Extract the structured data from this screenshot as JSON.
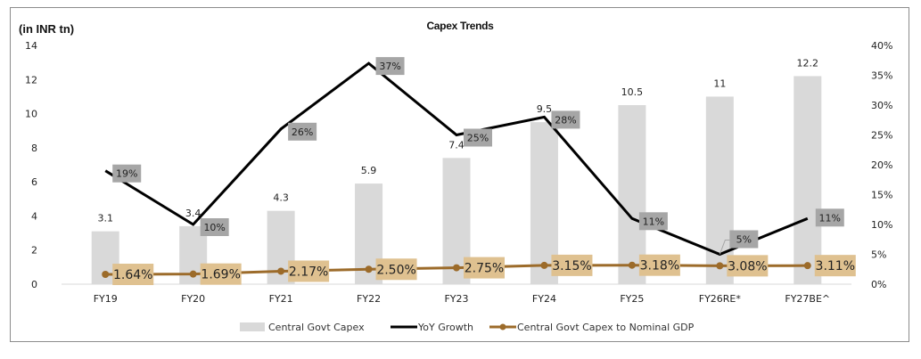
{
  "chart_data": {
    "type": "bar",
    "title": "Capex Trends",
    "ylabel": "(in INR tn)",
    "ylabel_right": "",
    "categories": [
      "FY19",
      "FY20",
      "FY21",
      "FY22",
      "FY23",
      "FY24",
      "FY25",
      "FY26RE*",
      "FY27BE^"
    ],
    "ylim": [
      0,
      14
    ],
    "yticks": [
      0,
      2,
      4,
      6,
      8,
      10,
      12,
      14
    ],
    "ylim_right": [
      0,
      40
    ],
    "yticks_right": [
      "0%",
      "5%",
      "10%",
      "15%",
      "20%",
      "25%",
      "30%",
      "35%",
      "40%"
    ],
    "grid": false,
    "legend_position": "bottom",
    "series": [
      {
        "name": "Central Govt Capex",
        "type": "bar",
        "axis": "left",
        "color": "#d9d9d9",
        "values": [
          3.1,
          3.4,
          4.3,
          5.9,
          7.4,
          9.5,
          10.5,
          11,
          12.2
        ],
        "labels": [
          "3.1",
          "3.4",
          "4.3",
          "5.9",
          "7.4",
          "9.5",
          "10.5",
          "11",
          "12.2"
        ]
      },
      {
        "name": "YoY Growth",
        "type": "line",
        "axis": "right",
        "color": "#000000",
        "values": [
          19,
          10,
          26,
          37,
          25,
          28,
          11,
          5,
          11
        ],
        "labels": [
          "19%",
          "10%",
          "26%",
          "37%",
          "25%",
          "28%",
          "11%",
          "5%",
          "11%"
        ],
        "label_bg": "#a6a6a6"
      },
      {
        "name": "Central Govt Capex to Nominal GDP",
        "type": "line",
        "axis": "right",
        "color": "#9c6b2a",
        "values": [
          1.64,
          1.69,
          2.17,
          2.5,
          2.75,
          3.15,
          3.18,
          3.08,
          3.11
        ],
        "labels": [
          "1.64%",
          "1.69%",
          "2.17%",
          "2.50%",
          "2.75%",
          "3.15%",
          "3.18%",
          "3.08%",
          "3.11%"
        ],
        "label_bg": "#dfc190"
      }
    ]
  }
}
